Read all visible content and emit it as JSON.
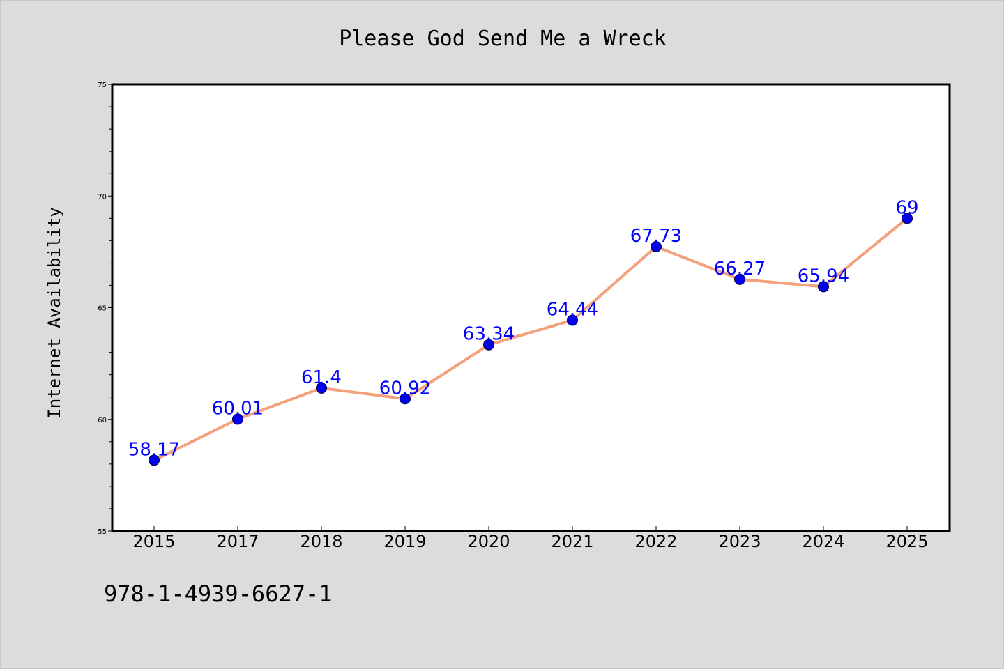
{
  "chart_data": {
    "type": "line",
    "title": "Please God Send Me a Wreck",
    "xlabel": "",
    "ylabel": "Internet Availability",
    "categories": [
      "2015",
      "2017",
      "2018",
      "2019",
      "2020",
      "2021",
      "2022",
      "2023",
      "2024",
      "2025"
    ],
    "series": [
      {
        "values": [
          58.17,
          60.01,
          61.4,
          60.92,
          63.34,
          64.44,
          67.73,
          66.27,
          65.94,
          69
        ],
        "labels": [
          "58.17",
          "60.01",
          "61.4",
          "60.92",
          "63.34",
          "64.44",
          "67.73",
          "66.27",
          "65.94",
          "69"
        ]
      }
    ],
    "ylim": [
      55,
      75
    ],
    "yticks": [
      "55",
      "60",
      "65",
      "70",
      "75"
    ],
    "ytick_values": [
      55,
      60,
      65,
      70,
      75
    ],
    "grid": false,
    "legend": "none",
    "colors": {
      "line": "#f4a07a",
      "marker": "#0000ee",
      "label": "#0000ff",
      "background": "#dcdcdc",
      "plot_background": "#ffffff"
    }
  },
  "footer": {
    "isbn": "978-1-4939-6627-1"
  }
}
